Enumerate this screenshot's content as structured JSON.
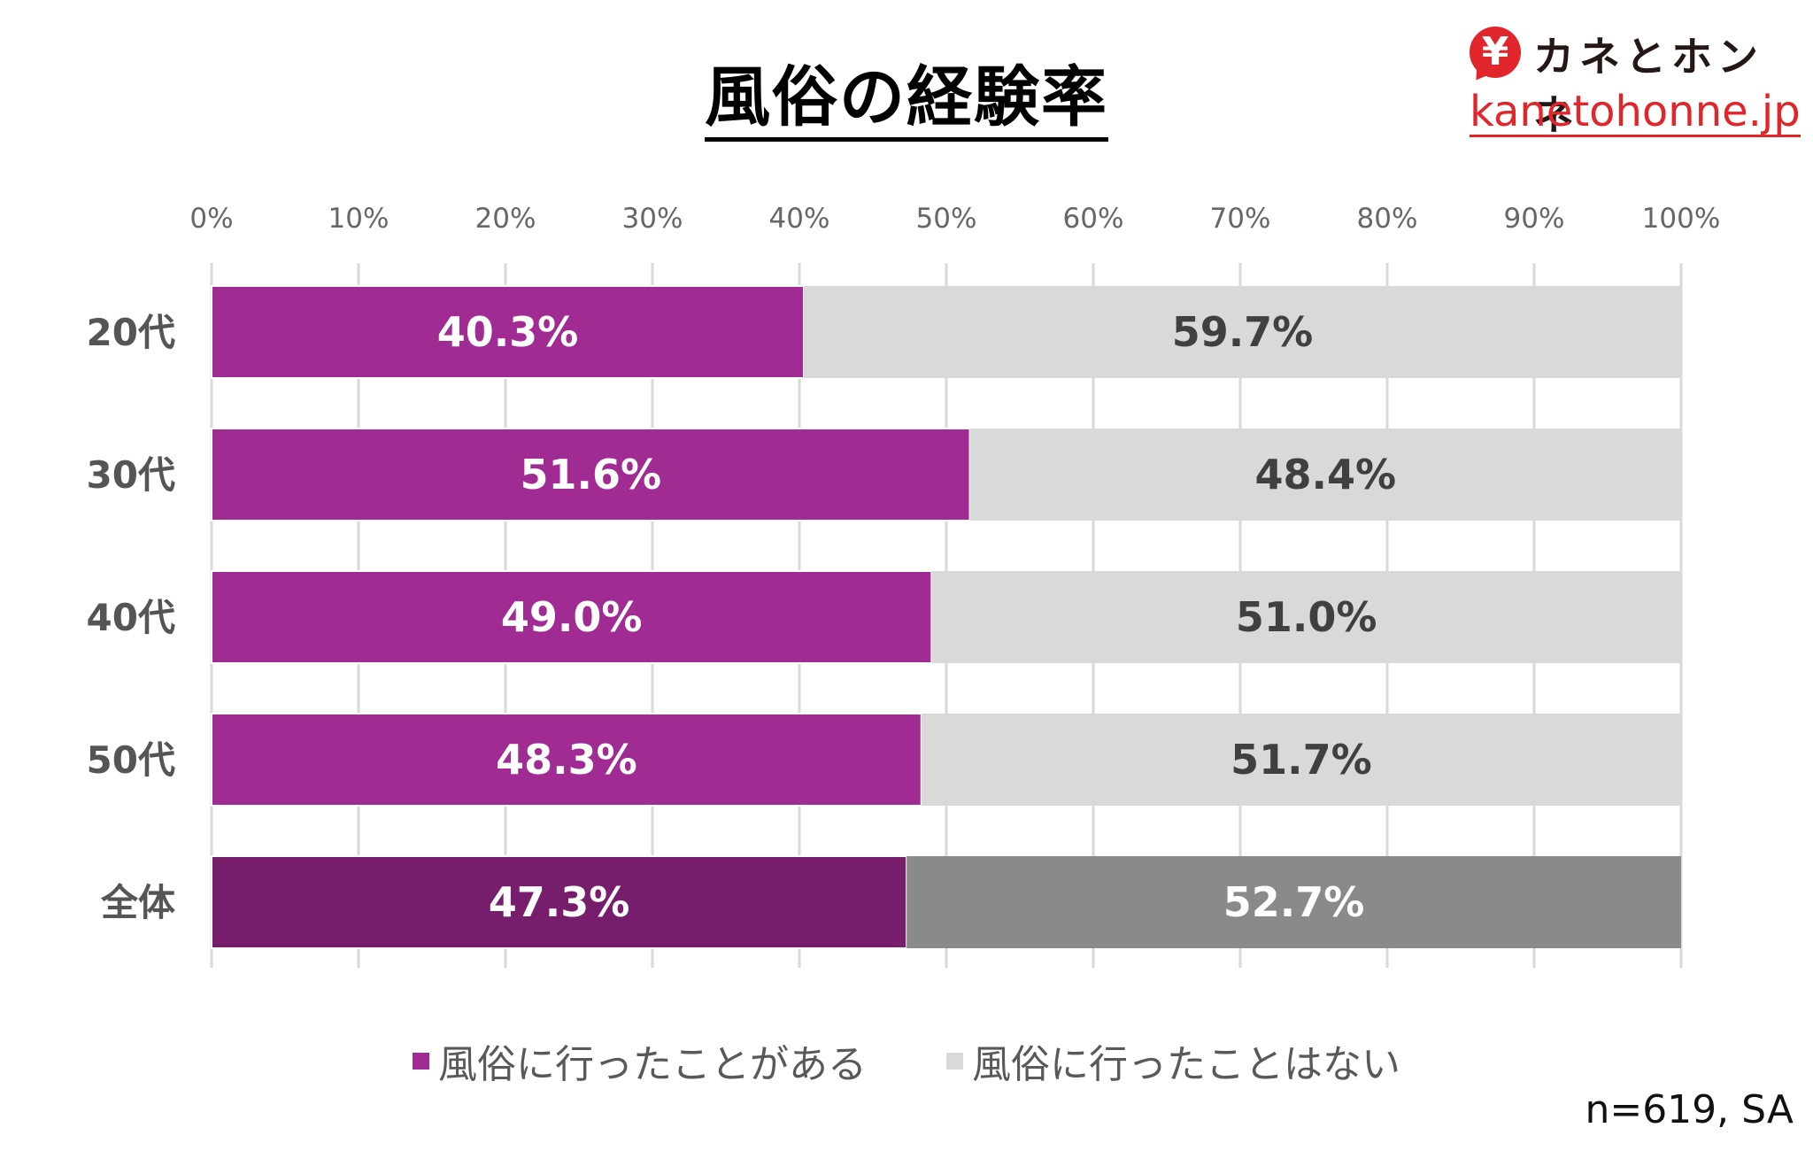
{
  "title": "風俗の経験率",
  "logo": {
    "icon": "yen-speech-bubble-icon",
    "symbol": "¥",
    "name": "カネとホンネ",
    "url": "kanetohonne.jp",
    "color": "#e0262b"
  },
  "footnote": "n=619, SA",
  "chart_data": {
    "type": "bar",
    "orientation": "horizontal",
    "stacked": true,
    "title": "風俗の経験率",
    "xlabel": "",
    "ylabel": "",
    "xlim": [
      0,
      100
    ],
    "x_ticks": [
      "0%",
      "10%",
      "20%",
      "30%",
      "40%",
      "50%",
      "60%",
      "70%",
      "80%",
      "90%",
      "100%"
    ],
    "x_tick_values": [
      0,
      10,
      20,
      30,
      40,
      50,
      60,
      70,
      80,
      90,
      100
    ],
    "grid": true,
    "legend_position": "bottom",
    "categories": [
      "20代",
      "30代",
      "40代",
      "50代",
      "全体"
    ],
    "series": [
      {
        "name": "風俗に行ったことがある",
        "color": "#a02b93",
        "highlight_color": "#761e6c",
        "label_color": "#ffffff",
        "values": [
          40.3,
          51.6,
          49.0,
          48.3,
          47.3
        ],
        "labels": [
          "40.3%",
          "51.6%",
          "49.0%",
          "48.3%",
          "47.3%"
        ]
      },
      {
        "name": "風俗に行ったことはない",
        "color": "#d9d9d9",
        "highlight_color": "#8a8a8a",
        "label_color": "#404040",
        "highlight_label_color": "#ffffff",
        "values": [
          59.7,
          48.4,
          51.0,
          51.7,
          52.7
        ],
        "labels": [
          "59.7%",
          "48.4%",
          "51.0%",
          "51.7%",
          "52.7%"
        ]
      }
    ],
    "highlight_category": "全体"
  }
}
